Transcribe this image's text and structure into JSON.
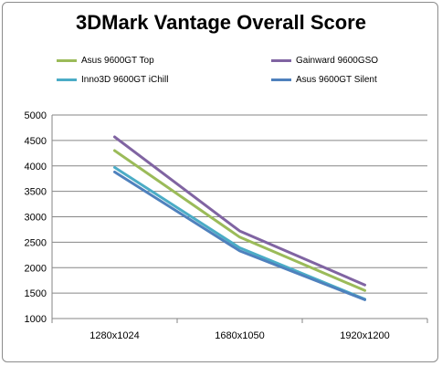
{
  "chart_data": {
    "type": "line",
    "title": "3DMark Vantage Overall Score",
    "xlabel": "",
    "ylabel": "",
    "categories": [
      "1280x1024",
      "1680x1050",
      "1920x1200"
    ],
    "ylim": [
      1000,
      5000
    ],
    "yticks": [
      1000,
      1500,
      2000,
      2500,
      3000,
      3500,
      4000,
      4500,
      5000
    ],
    "grid": true,
    "legend_position": "top",
    "series": [
      {
        "name": "Asus 9600GT Top",
        "color": "#9bbb59",
        "values": [
          4300,
          2600,
          1550
        ]
      },
      {
        "name": "Gainward 9600GSO",
        "color": "#8064a2",
        "values": [
          4570,
          2720,
          1660
        ]
      },
      {
        "name": "Inno3D 9600GT iChill",
        "color": "#4bacc6",
        "values": [
          3970,
          2390,
          1380
        ]
      },
      {
        "name": "Asus 9600GT Silent",
        "color": "#4f81bd",
        "values": [
          3880,
          2330,
          1370
        ]
      }
    ]
  }
}
